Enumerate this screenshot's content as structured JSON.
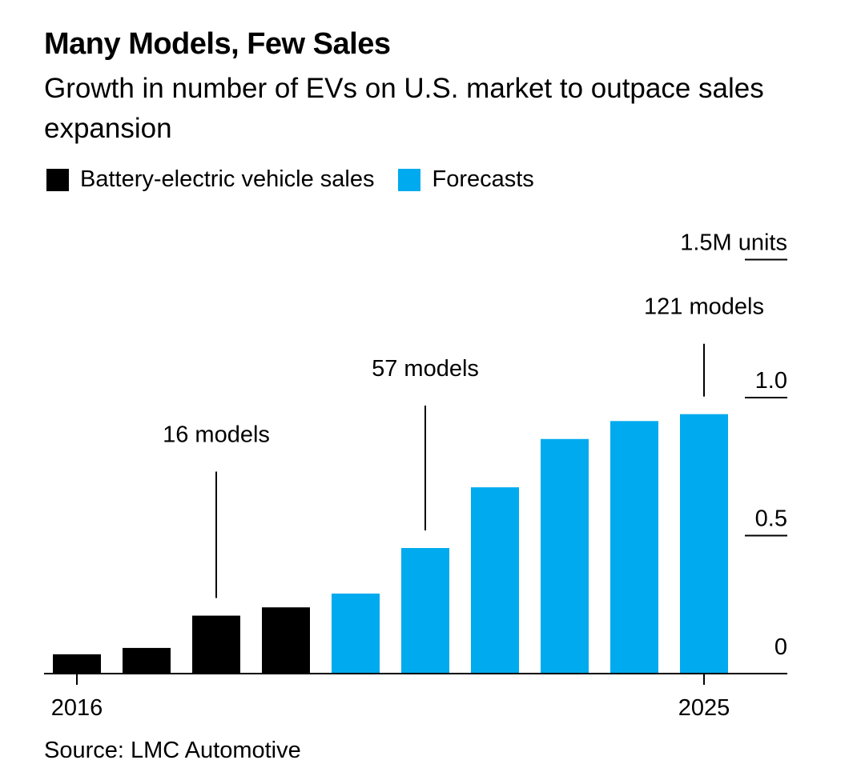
{
  "title": "Many Models, Few Sales",
  "subtitle": "Growth in number of EVs on U.S. market to outpace sales expansion",
  "source": "Source: LMC Automotive",
  "chart_data": {
    "type": "bar",
    "categories": [
      "2016",
      "2017",
      "2018",
      "2019",
      "2020",
      "2021",
      "2022",
      "2023",
      "2024",
      "2025"
    ],
    "x_tick_labels": [
      "2016",
      "2025"
    ],
    "series": [
      {
        "name": "Battery-electric vehicle sales",
        "color": "#000000",
        "values": [
          0.07,
          0.093,
          0.21,
          0.24,
          null,
          null,
          null,
          null,
          null,
          null
        ]
      },
      {
        "name": "Forecasts",
        "color": "#00aaee",
        "values": [
          null,
          null,
          null,
          null,
          0.29,
          0.455,
          0.675,
          0.85,
          0.915,
          0.94
        ]
      }
    ],
    "ylim": [
      0,
      1.5
    ],
    "y_ticks": [
      0,
      0.5,
      1.0,
      1.5
    ],
    "y_tick_labels": [
      "0",
      "0.5",
      "1.0",
      "1.5M units"
    ],
    "y_axis_side": "right",
    "ylabel": "",
    "xlabel": "",
    "grid": false,
    "legend_placement": "top-left",
    "annotations": [
      {
        "category": "2018",
        "text": "16 models"
      },
      {
        "category": "2021",
        "text": "57 models"
      },
      {
        "category": "2025",
        "text": "121 models"
      }
    ]
  }
}
